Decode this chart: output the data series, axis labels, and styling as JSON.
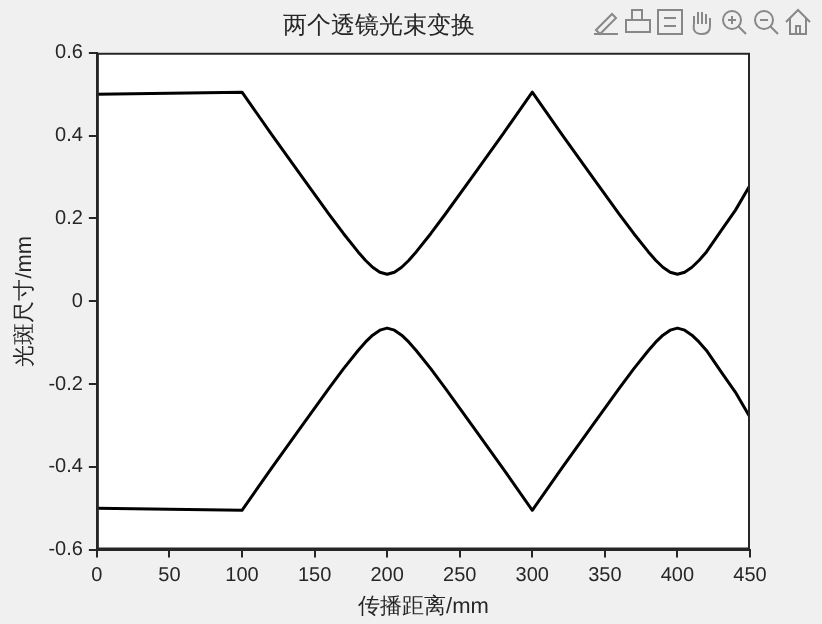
{
  "chart_data": {
    "type": "line",
    "title": "两个透镜光束变换",
    "xlabel": "传播距离/mm",
    "ylabel": "光斑尺寸/mm",
    "x": [
      0,
      100,
      120,
      140,
      160,
      170,
      180,
      185,
      190,
      195,
      200,
      205,
      210,
      215,
      220,
      230,
      240,
      260,
      280,
      300,
      320,
      340,
      360,
      370,
      380,
      385,
      390,
      395,
      400,
      405,
      410,
      415,
      420,
      430,
      440,
      450
    ],
    "series": [
      {
        "color": "#000000",
        "values": [
          0.5,
          0.505,
          0.405,
          0.307,
          0.21,
          0.163,
          0.119,
          0.099,
          0.082,
          0.07,
          0.065,
          0.07,
          0.082,
          0.099,
          0.119,
          0.163,
          0.21,
          0.307,
          0.405,
          0.505,
          0.405,
          0.307,
          0.21,
          0.163,
          0.119,
          0.099,
          0.082,
          0.07,
          0.065,
          0.07,
          0.082,
          0.099,
          0.119,
          0.17,
          0.22,
          0.28
        ]
      },
      {
        "color": "#000000",
        "values": [
          -0.5,
          -0.505,
          -0.405,
          -0.307,
          -0.21,
          -0.163,
          -0.119,
          -0.099,
          -0.082,
          -0.07,
          -0.065,
          -0.07,
          -0.082,
          -0.099,
          -0.119,
          -0.163,
          -0.21,
          -0.307,
          -0.405,
          -0.505,
          -0.405,
          -0.307,
          -0.21,
          -0.163,
          -0.119,
          -0.099,
          -0.082,
          -0.07,
          -0.065,
          -0.07,
          -0.082,
          -0.099,
          -0.119,
          -0.17,
          -0.22,
          -0.28
        ]
      }
    ],
    "xlim": [
      0,
      450
    ],
    "xticks": [
      0,
      50,
      100,
      150,
      200,
      250,
      300,
      350,
      400,
      450
    ],
    "ylim": [
      -0.6,
      0.6
    ],
    "yticks": [
      -0.6,
      -0.4,
      -0.2,
      0,
      0.2,
      0.4,
      0.6
    ],
    "grid": false,
    "legend": false,
    "marker": "none",
    "line_style": "solid"
  }
}
